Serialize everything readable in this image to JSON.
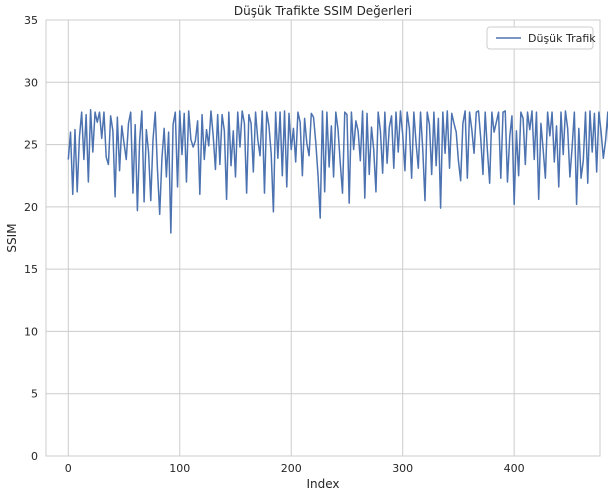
{
  "chart_data": {
    "type": "line",
    "title": "Düşük Trafikte SSIM Değerleri",
    "xlabel": "Index",
    "ylabel": "SSIM",
    "xlim": [
      -20,
      477
    ],
    "ylim": [
      0,
      35
    ],
    "xticks": [
      0,
      100,
      200,
      300,
      400
    ],
    "yticks": [
      0,
      5,
      10,
      15,
      20,
      25,
      30,
      35
    ],
    "grid": true,
    "legend_position": "top-right",
    "colors": {
      "line": "#4c72b0",
      "grid": "#cccccc",
      "frame": "#cccccc"
    },
    "series": [
      {
        "name": "Düşük Trafik",
        "x_start": 0,
        "x_step": 2,
        "values": [
          23.8,
          26.0,
          21.0,
          26.2,
          21.2,
          25.6,
          27.6,
          23.8,
          27.4,
          22.0,
          27.8,
          24.4,
          27.6,
          26.8,
          27.6,
          25.5,
          27.6,
          24.0,
          23.4,
          27.3,
          26.1,
          20.8,
          27.2,
          22.9,
          26.5,
          25.1,
          23.8,
          26.7,
          27.6,
          21.1,
          26.6,
          19.7,
          25.3,
          27.7,
          20.4,
          26.2,
          24.4,
          20.5,
          25.4,
          27.6,
          23.0,
          19.4,
          23.9,
          26.3,
          22.4,
          26.0,
          17.9,
          26.6,
          27.6,
          21.6,
          27.7,
          24.2,
          27.5,
          22.0,
          27.7,
          25.4,
          24.8,
          25.3,
          26.9,
          21.0,
          27.4,
          23.8,
          26.2,
          24.9,
          27.7,
          25.7,
          23.0,
          27.4,
          23.4,
          27.4,
          26.1,
          20.6,
          27.6,
          23.3,
          26.1,
          22.4,
          27.6,
          24.8,
          27.7,
          26.7,
          21.1,
          27.4,
          26.7,
          22.8,
          27.6,
          25.4,
          24.1,
          27.7,
          21.1,
          27.6,
          26.5,
          24.3,
          19.6,
          27.6,
          23.9,
          27.6,
          22.5,
          27.7,
          21.6,
          27.5,
          24.6,
          26.3,
          23.6,
          27.6,
          26.8,
          22.5,
          27.1,
          25.1,
          24.1,
          27.5,
          27.2,
          25.2,
          22.6,
          19.1,
          27.7,
          21.2,
          27.6,
          23.2,
          26.5,
          22.4,
          27.6,
          26.2,
          23.5,
          21.1,
          27.6,
          27.4,
          20.3,
          27.6,
          24.6,
          26.9,
          26.1,
          23.7,
          27.7,
          20.7,
          27.5,
          22.6,
          26.4,
          24.6,
          21.2,
          27.6,
          26.1,
          22.7,
          27.6,
          23.5,
          26.4,
          27.3,
          23.1,
          27.6,
          24.4,
          27.7,
          25.8,
          22.9,
          27.6,
          26.3,
          22.3,
          27.6,
          25.1,
          23.1,
          27.6,
          24.6,
          20.5,
          27.6,
          26.6,
          22.6,
          27.6,
          23.3,
          27.1,
          19.9,
          27.6,
          24.3,
          27.7,
          23.1,
          27.5,
          26.7,
          26.0,
          23.7,
          22.1,
          26.7,
          27.7,
          22.3,
          27.6,
          26.2,
          24.3,
          27.6,
          27.7,
          25.5,
          22.6,
          27.6,
          24.5,
          21.9,
          27.6,
          26.0,
          26.8,
          27.6,
          22.3,
          27.6,
          27.7,
          22.0,
          25.6,
          27.3,
          20.2,
          26.1,
          22.5,
          27.6,
          27.1,
          23.4,
          27.6,
          26.2,
          27.7,
          23.8,
          27.6,
          20.6,
          26.7,
          24.6,
          22.3,
          27.6,
          25.7,
          27.6,
          23.6,
          26.5,
          21.6,
          27.6,
          24.2,
          27.7,
          26.3,
          22.4,
          24.8,
          27.6,
          20.2,
          26.3,
          22.3,
          23.7,
          27.6,
          21.9,
          27.7,
          24.4,
          27.5,
          22.8,
          27.6,
          26.0,
          23.9,
          25.3,
          27.6,
          21.6,
          27.5,
          23.7,
          25.7,
          27.6,
          20.2,
          22.4,
          26.3,
          20.7,
          26.3,
          23.4,
          27.6,
          21.1,
          27.6,
          24.1,
          26.3,
          21.6,
          27.6,
          23.5,
          25.3,
          27.7,
          20.7,
          27.6,
          26.3,
          19.9,
          27.6,
          24.7,
          26.5,
          21.7,
          27.6,
          23.0,
          27.6,
          24.3,
          27.6,
          22.6,
          26.8,
          26.2,
          20.9,
          27.6,
          24.8,
          25.9,
          27.6,
          22.3,
          26.8,
          24.6,
          27.6,
          21.1,
          26.0,
          24.5,
          27.7,
          23.7,
          27.6,
          22.9,
          26.8,
          27.7,
          26.4,
          22.0,
          27.7,
          20.5,
          27.6,
          26.4,
          22.6,
          23.9,
          27.6,
          24.3,
          27.6,
          26.2,
          25.8,
          22.3,
          27.6,
          19.9,
          27.6,
          23.4,
          27.6,
          26.2,
          25.3,
          27.6,
          21.6,
          26.3,
          24.5,
          27.7,
          23.2,
          27.6,
          20.9,
          27.1,
          26.4,
          22.6,
          27.7,
          25.5,
          24.0,
          27.7,
          21.7,
          27.6,
          26.8,
          21.6,
          24.7,
          26.2,
          22.3,
          27.6,
          25.8,
          23.1,
          27.6,
          24.4,
          26.3,
          22.4,
          27.6,
          23.5,
          20.2,
          27.6,
          26.1,
          24.2,
          27.6,
          21.5,
          26.5,
          27.6,
          22.9,
          25.2,
          27.6,
          23.7,
          27.6,
          20.9,
          27.4,
          22.4,
          26.6,
          24.7,
          26.2,
          21.7,
          27.7,
          24.7,
          23.6,
          27.6,
          21.8,
          27.7,
          22.6,
          27.3,
          26.1,
          24.5,
          21.8,
          27.6,
          23.4,
          25.8,
          27.6,
          25.1,
          22.3,
          27.6,
          20.2,
          26.6,
          24.3,
          27.6,
          22.6,
          26.3,
          27.6,
          23.7,
          27.0,
          21.5,
          27.6,
          25.0,
          22.9,
          27.6,
          24.4,
          20.5,
          27.7,
          26.3,
          22.2,
          27.6,
          24.9,
          26.8,
          23.5,
          27.6,
          22.0,
          27.6,
          26.3,
          23.3,
          27.6,
          24.7,
          21.1,
          27.7,
          26.0,
          22.5,
          27.6,
          20.2,
          26.2,
          22.3,
          27.6,
          23.5,
          24.6,
          26.1,
          22.4,
          27.6,
          19.8,
          27.6,
          24.0,
          26.3,
          22.6,
          27.6,
          23.2,
          26.1,
          21.3,
          27.7,
          25.8,
          22.9,
          27.6,
          26.2,
          20.1,
          26.0,
          22.4,
          27.6,
          24.3,
          26.5,
          22.1,
          26.2,
          20.1,
          22.3
        ]
      }
    ]
  }
}
